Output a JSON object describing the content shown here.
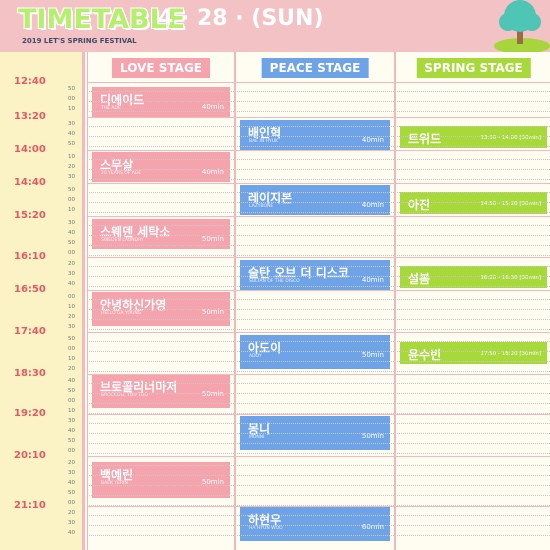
{
  "header": {
    "title": "TIMETABLE",
    "date": "4 · 28 · (SUN)",
    "subtitle": "2019 LET'S SPRING FESTIVAL"
  },
  "colors": {
    "pink": "#f3c2c4",
    "love": "#f5a3ad",
    "peace": "#6fa3e8",
    "spring": "#a7d93a",
    "time_text": "#e35a63"
  },
  "stages": [
    {
      "name": "LOVE STAGE"
    },
    {
      "name": "PEACE STAGE"
    },
    {
      "name": "SPRING STAGE"
    }
  ],
  "times": [
    "12:40",
    "13:20",
    "14:00",
    "14:40",
    "15:20",
    "16:10",
    "16:50",
    "17:40",
    "18:30",
    "19:20",
    "20:10",
    "21:10"
  ],
  "minute_labels": [
    [
      "50",
      "00",
      "10"
    ],
    [
      "30",
      "40",
      "50"
    ],
    [
      "10",
      "20",
      "30"
    ],
    [
      "50",
      "00",
      "10"
    ],
    [
      "30",
      "40",
      "50",
      "00"
    ],
    [
      "20",
      "30",
      "40"
    ],
    [
      "00",
      "10",
      "20",
      "30"
    ],
    [
      "50",
      "00",
      "10",
      "20"
    ],
    [
      "40",
      "50",
      "00",
      "10"
    ],
    [
      "30",
      "40",
      "50",
      "00"
    ],
    [
      "20",
      "30",
      "40",
      "50",
      "00"
    ],
    [
      "20",
      "30",
      "40"
    ]
  ],
  "love": [
    {
      "name": "디에이드",
      "en": "THE ADE",
      "dur": "40min"
    },
    {
      "name": "스무살",
      "en": "20 YEARS OF AGE",
      "dur": "40min"
    },
    {
      "name": "스웨덴 세탁소",
      "en": "SWEDEN LAUNDRY",
      "dur": "50min"
    },
    {
      "name": "안녕하신가영",
      "en": "HELLO GA YOUNG",
      "dur": "50min"
    },
    {
      "name": "브로콜리너마저",
      "en": "BROCCOLI, YOU TOO",
      "dur": "50min"
    },
    {
      "name": "백예린",
      "en": "BAEK YERIN",
      "dur": "50min"
    }
  ],
  "peace": [
    {
      "name": "배인혁",
      "en": "BAE IN HYUK",
      "dur": "40min"
    },
    {
      "name": "레이지본",
      "en": "LAZYBONE",
      "dur": "40min"
    },
    {
      "name": "술탄 오브 더 디스코",
      "en": "SULTAN OF THE DISCO",
      "dur": "40min"
    },
    {
      "name": "아도이",
      "en": "ADOY",
      "dur": "50min"
    },
    {
      "name": "몽니",
      "en": "MONNI",
      "dur": "50min"
    },
    {
      "name": "하현우",
      "en": "HA HYUN WOO",
      "dur": "60min"
    }
  ],
  "spring": [
    {
      "name": "트위드",
      "dur": "13:30 - 14:00  [30min]"
    },
    {
      "name": "아진",
      "dur": "14:50 - 15:20  [30min]"
    },
    {
      "name": "설봄",
      "dur": "16:20 - 16:50  [30min]"
    },
    {
      "name": "윤수빈",
      "dur": "17:50 - 18:20  [30min]"
    }
  ]
}
